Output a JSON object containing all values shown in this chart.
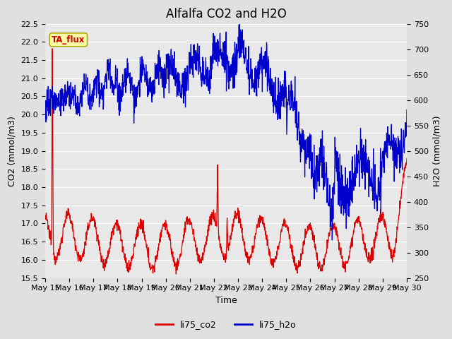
{
  "title": "Alfalfa CO2 and H2O",
  "xlabel": "Time",
  "ylabel_left": "CO2 (mmol/m3)",
  "ylabel_right": "H2O (mmol/m3)",
  "ylim_left": [
    15.5,
    22.5
  ],
  "ylim_right": [
    250,
    750
  ],
  "yticks_left": [
    15.5,
    16.0,
    16.5,
    17.0,
    17.5,
    18.0,
    18.5,
    19.0,
    19.5,
    20.0,
    20.5,
    21.0,
    21.5,
    22.0,
    22.5
  ],
  "yticks_right": [
    250,
    300,
    350,
    400,
    450,
    500,
    550,
    600,
    650,
    700,
    750
  ],
  "xtick_labels": [
    "May 15",
    "May 16",
    "May 17",
    "May 18",
    "May 19",
    "May 20",
    "May 21",
    "May 22",
    "May 23",
    "May 24",
    "May 25",
    "May 26",
    "May 27",
    "May 28",
    "May 29",
    "May 30"
  ],
  "annotation_text": "TA_flux",
  "annotation_color": "#cc0000",
  "annotation_bg": "#ffffaa",
  "annotation_border": "#aaaa00",
  "bg_color": "#e0e0e0",
  "plot_bg": "#e8e8e8",
  "grid_color": "#ffffff",
  "line_co2_color": "#dd0000",
  "line_h2o_color": "#0000cc",
  "legend_co2": "li75_co2",
  "legend_h2o": "li75_h2o",
  "title_fontsize": 12,
  "label_fontsize": 9,
  "tick_fontsize": 8
}
